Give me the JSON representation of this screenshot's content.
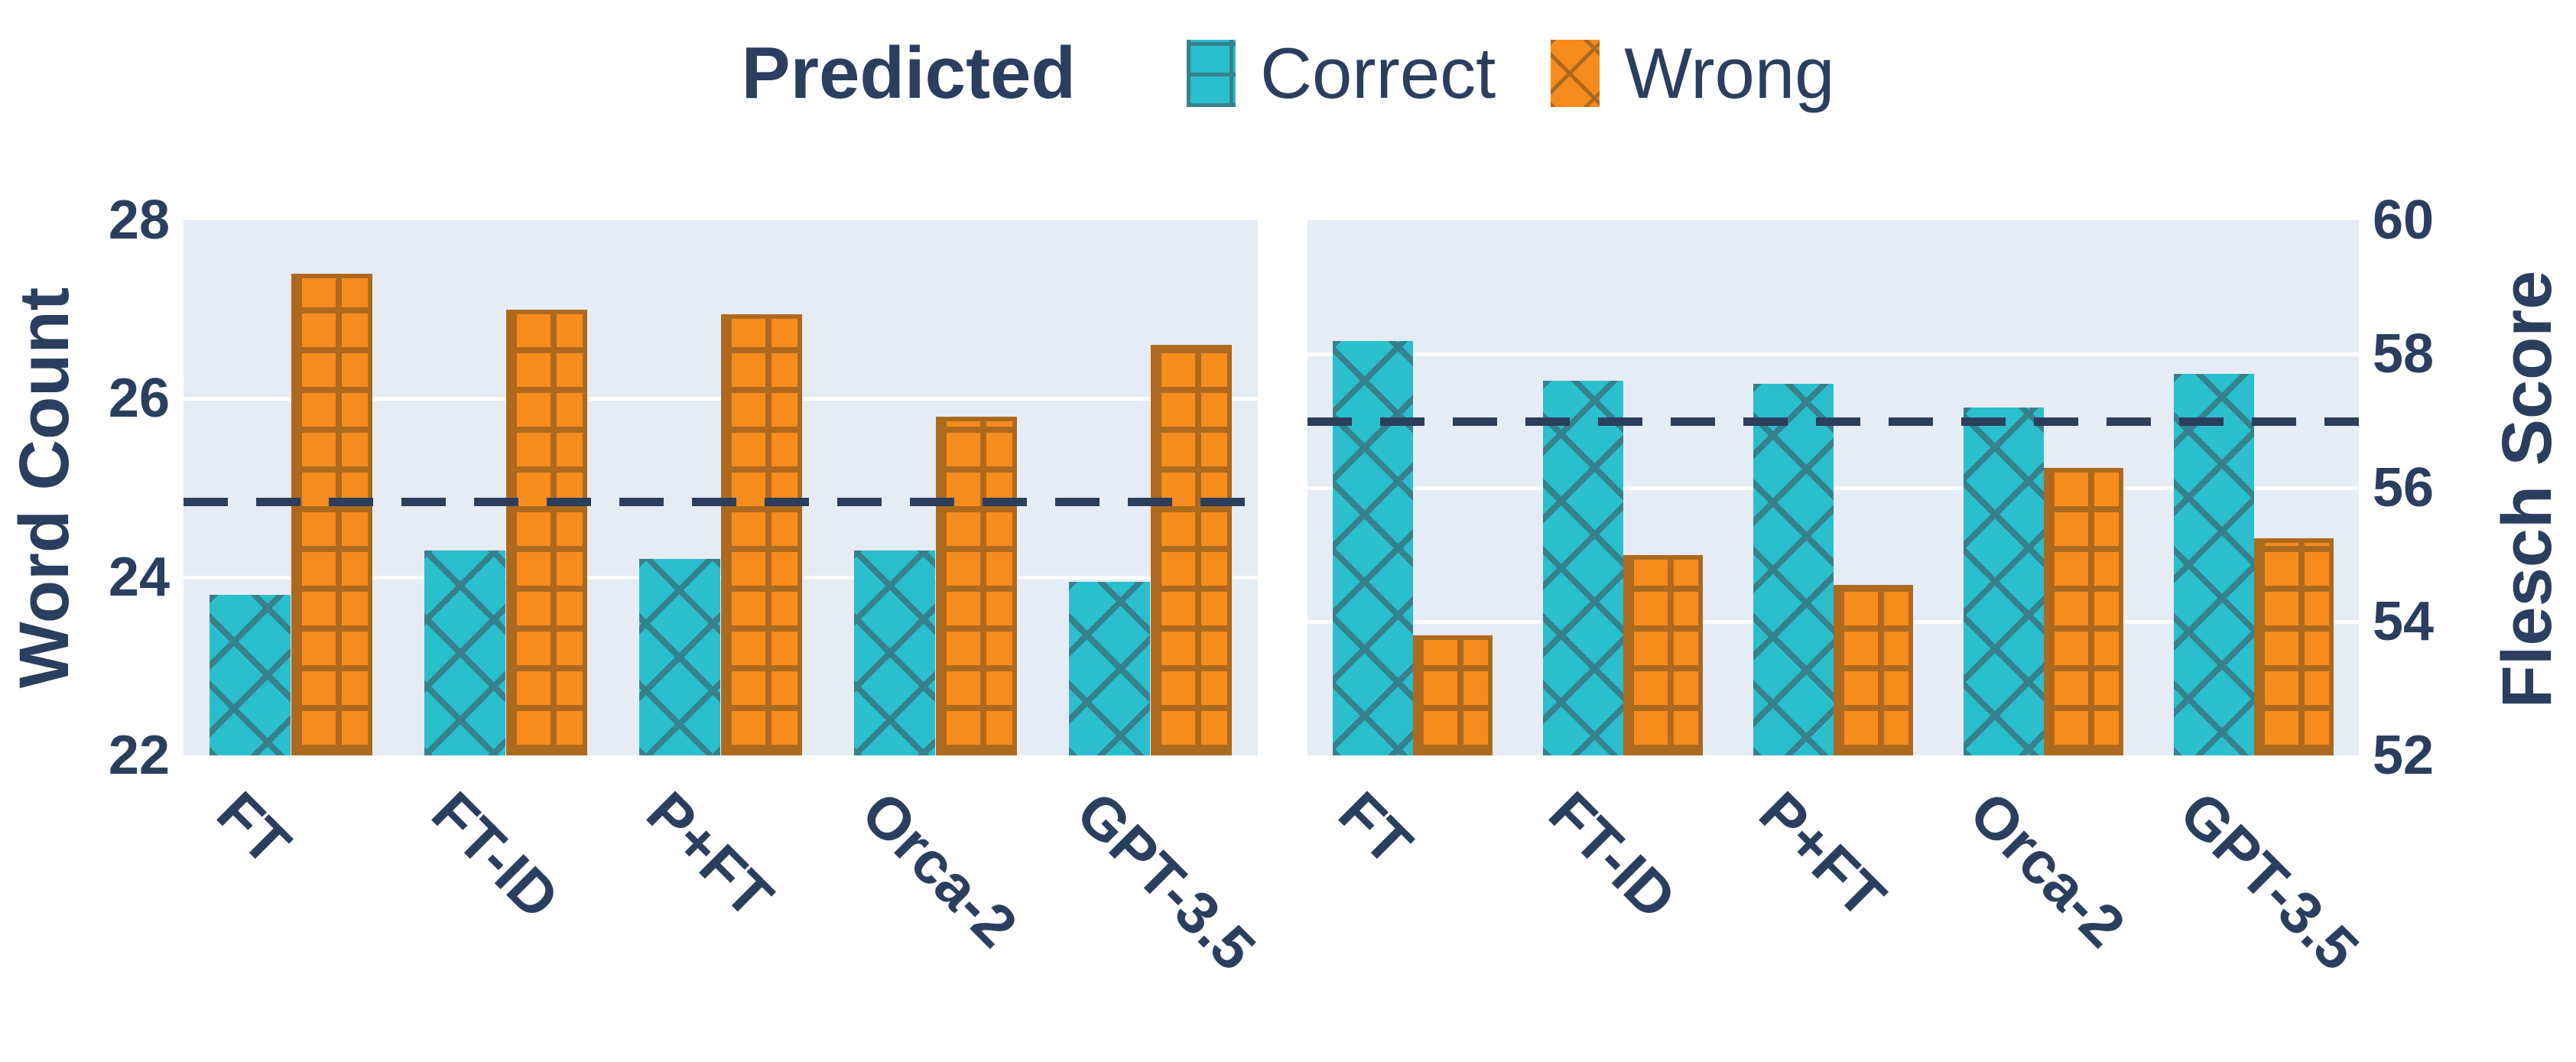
{
  "legend": {
    "title": "Predicted",
    "items": [
      {
        "label": "Correct"
      },
      {
        "label": "Wrong"
      }
    ]
  },
  "colors": {
    "correct": "#2bbecd",
    "correct_hatch": "#35818d",
    "wrong": "#f78c1e",
    "wrong_hatch": "#ad6a1e",
    "background": "#e5ecf6",
    "grid": "#ffffff",
    "text": "#2a3f5f",
    "ref_line": "#2b3f5c"
  },
  "chart_data": [
    {
      "type": "bar",
      "title": "",
      "xlabel": "",
      "ylabel": "Word Count",
      "yaxis_side": "left",
      "grid": true,
      "categories": [
        "FT",
        "FT-ID",
        "P+FT",
        "Orca-2",
        "GPT-3.5"
      ],
      "series": [
        {
          "name": "Correct",
          "values": [
            23.8,
            24.3,
            24.2,
            24.3,
            23.95
          ]
        },
        {
          "name": "Wrong",
          "values": [
            27.4,
            27.0,
            26.95,
            25.8,
            26.6
          ]
        }
      ],
      "ref_line": 24.85,
      "ylim": [
        22,
        28
      ],
      "yticks": [
        22,
        24,
        26,
        28
      ]
    },
    {
      "type": "bar",
      "title": "",
      "xlabel": "",
      "ylabel": "Flesch Score",
      "yaxis_side": "right",
      "grid": true,
      "categories": [
        "FT",
        "FT-ID",
        "P+FT",
        "Orca-2",
        "GPT-3.5"
      ],
      "series": [
        {
          "name": "Correct",
          "values": [
            58.2,
            57.6,
            57.55,
            57.2,
            57.7
          ]
        },
        {
          "name": "Wrong",
          "values": [
            53.8,
            55.0,
            54.55,
            56.3,
            55.25
          ]
        }
      ],
      "ref_line": 57.0,
      "ylim": [
        52,
        60
      ],
      "yticks": [
        52,
        54,
        56,
        58,
        60
      ]
    }
  ]
}
